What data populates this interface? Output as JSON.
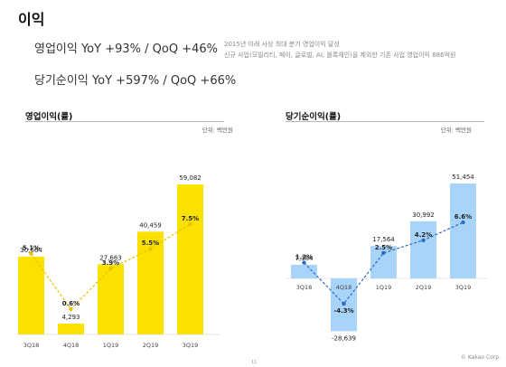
{
  "page": {
    "title": "이익",
    "headline_op": "영업이익 YoY +93% / QoQ +46%",
    "headline_net": "당기순이익 YoY +597% / QoQ +66%",
    "note_line1": "2015년 이래 사상 최대 분기 영업이익 달성",
    "note_line2": "신규 사업(모빌리티, 페이, 글로벌, AI, 블록체인)을 제외한 기존 사업 영업이익 886억원",
    "footer_brand": "© Kakao Corp.",
    "page_number": "11"
  },
  "colors": {
    "op_bar": "#FAE100",
    "net_bar": "#A8D4FA",
    "op_line": "#E8C200",
    "net_line": "#2B6CC4"
  },
  "chart_data": [
    {
      "type": "bar",
      "title": "영업이익(률)",
      "unit": "단위: 백만원",
      "categories": [
        "3Q18",
        "4Q18",
        "1Q19",
        "2Q19",
        "3Q19"
      ],
      "values": [
        30664,
        4293,
        27663,
        40459,
        59082
      ],
      "value_labels": [
        "30,664",
        "4,293",
        "27,663",
        "40,459",
        "59,082"
      ],
      "margin_pct": [
        5.1,
        0.6,
        3.9,
        5.5,
        7.5
      ],
      "margin_labels": [
        "5.1%",
        "0.6%",
        "3.9%",
        "5.5%",
        "7.5%"
      ],
      "ylim": [
        0,
        65000
      ]
    },
    {
      "type": "bar",
      "title": "당기순이익(률)",
      "unit": "단위: 백만원",
      "categories": [
        "3Q18",
        "4Q18",
        "1Q19",
        "2Q19",
        "3Q19"
      ],
      "values": [
        7384,
        -28639,
        17564,
        30992,
        51454
      ],
      "value_labels": [
        "7,384",
        "-28,639",
        "17,564",
        "30,992",
        "51,454"
      ],
      "margin_pct": [
        1.2,
        -4.3,
        2.5,
        4.2,
        6.6
      ],
      "margin_labels": [
        "1.2%",
        "-4.3%",
        "2.5%",
        "4.2%",
        "6.6%"
      ],
      "ylim": [
        -30000,
        55000
      ]
    }
  ]
}
